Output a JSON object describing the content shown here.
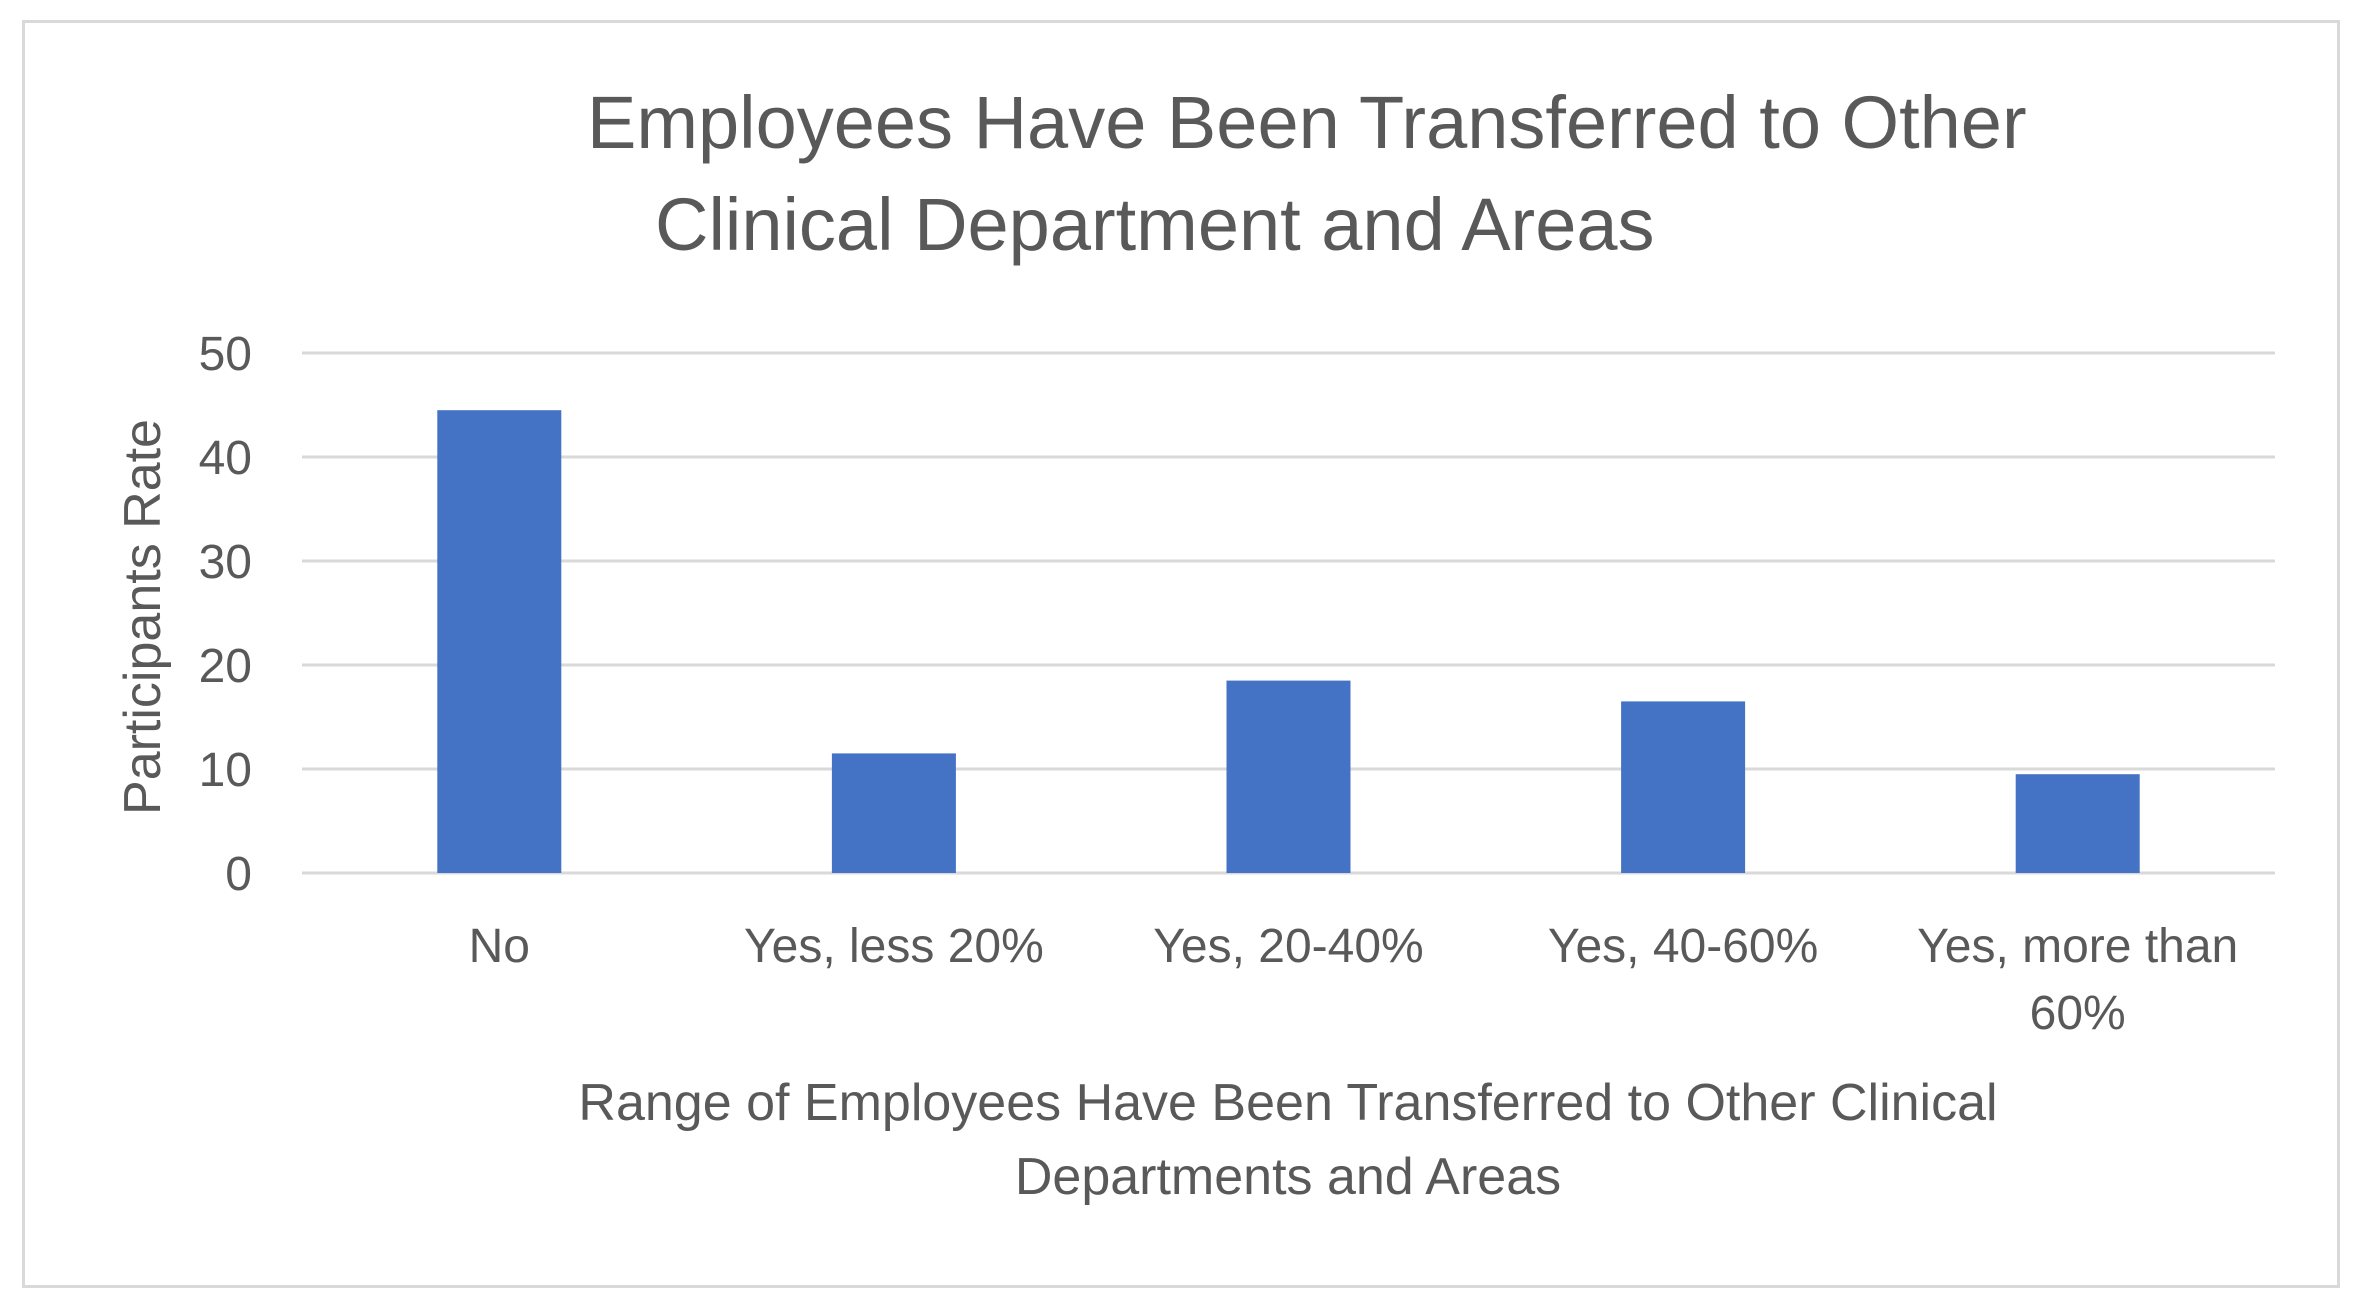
{
  "chart_data": {
    "type": "bar",
    "title": "Employees Have Been Transferred to Other Clinical Department and Areas",
    "title_lines": [
      "Employees Have Been Transferred to Other",
      "Clinical Department and Areas"
    ],
    "categories": [
      "No",
      "Yes, less 20%",
      "Yes, 20-40%",
      "Yes, 40-60%",
      "Yes, more than 60%"
    ],
    "category_label_lines": [
      [
        "No"
      ],
      [
        "Yes, less 20%"
      ],
      [
        "Yes, 20-40%"
      ],
      [
        "Yes, 40-60%"
      ],
      [
        "Yes, more than",
        "60%"
      ]
    ],
    "values": [
      44.5,
      11.5,
      18.5,
      16.5,
      9.5
    ],
    "xlabel": "Range of Employees Have Been Transferred to Other Clinical Departments and Areas",
    "xlabel_lines": [
      "Range of Employees Have Been Transferred to Other Clinical",
      "Departments and Areas"
    ],
    "ylabel": "Participants Rate",
    "ylim": [
      0,
      50
    ],
    "yticks": [
      0,
      10,
      20,
      30,
      40,
      50
    ],
    "grid": true,
    "legend": "none",
    "bar_color": "#4472c4"
  }
}
